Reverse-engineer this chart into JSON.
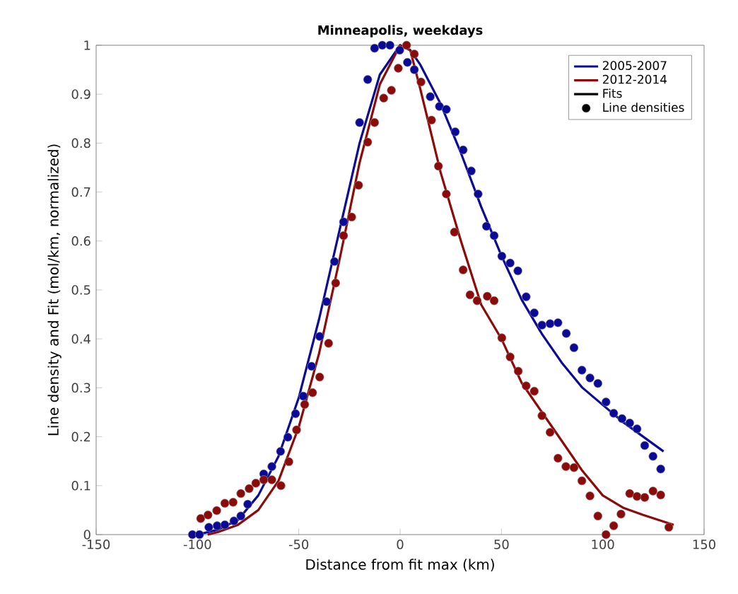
{
  "chart_data": {
    "type": "line",
    "title": "Minneapolis, weekdays",
    "xlabel": "Distance from fit max (km)",
    "ylabel": "Line density and Fit (mol/km, normalized)",
    "xlim": [
      -150,
      150
    ],
    "ylim": [
      0,
      1
    ],
    "xticks": [
      -150,
      -100,
      -50,
      0,
      50,
      100,
      150
    ],
    "yticks": [
      0,
      0.1,
      0.2,
      0.3,
      0.4,
      0.5,
      0.6,
      0.7,
      0.8,
      0.9,
      1
    ],
    "grid": false,
    "legend": "top right",
    "series": [
      {
        "name": "2005-2007",
        "marker": "none",
        "color": "#0a0a96",
        "x": [
          -100,
          -90,
          -80,
          -70,
          -60,
          -50,
          -40,
          -30,
          -20,
          -10,
          0,
          5,
          10,
          20,
          30,
          40,
          50,
          60,
          70,
          80,
          90,
          100,
          110,
          120,
          130
        ],
        "values": [
          0,
          0.01,
          0.03,
          0.08,
          0.16,
          0.28,
          0.44,
          0.62,
          0.8,
          0.94,
          1.0,
          0.99,
          0.96,
          0.88,
          0.78,
          0.67,
          0.57,
          0.48,
          0.41,
          0.35,
          0.3,
          0.265,
          0.23,
          0.2,
          0.17
        ]
      },
      {
        "name": "2012-2014",
        "marker": "none",
        "color": "#8b0a0a",
        "x": [
          -95,
          -90,
          -80,
          -70,
          -60,
          -50,
          -40,
          -30,
          -20,
          -10,
          0,
          5,
          10,
          20,
          30,
          40,
          50,
          60,
          70,
          80,
          90,
          100,
          110,
          120,
          135
        ],
        "values": [
          0,
          0.005,
          0.02,
          0.05,
          0.11,
          0.22,
          0.37,
          0.56,
          0.76,
          0.92,
          1.0,
          0.99,
          0.91,
          0.74,
          0.6,
          0.47,
          0.4,
          0.31,
          0.25,
          0.19,
          0.13,
          0.08,
          0.055,
          0.04,
          0.02
        ]
      },
      {
        "name": "Fits",
        "marker": "none",
        "color": "#000000"
      },
      {
        "name": "Line densities",
        "type": "scatter",
        "marker": "circle",
        "color": "#000000"
      },
      {
        "type": "scatter",
        "marker": "circle",
        "color": "#0a0a96",
        "x": [
          -102.5,
          -99,
          -94.4,
          -90.3,
          -86.5,
          -82,
          -78.6,
          -75.2,
          -67.3,
          -63.3,
          -59,
          -55.4,
          -51.6,
          -47.8,
          -43.7,
          -39.7,
          -36.3,
          -32.4,
          -27.9,
          -20,
          -16,
          -12.6,
          -8.8,
          -5,
          -0.2,
          3.6,
          7,
          14.9,
          19.4,
          22.8,
          27.2,
          31.1,
          35.1,
          38.5,
          42.6,
          46.4,
          50.2,
          54.3,
          58.1,
          62.2,
          66.2,
          70,
          74,
          77.9,
          82,
          85.8,
          89.7,
          93.7,
          97.6,
          101.6,
          105.4,
          109.5,
          113.3,
          116.9,
          120.7,
          124.8,
          128.6
        ],
        "values": [
          0,
          0,
          0.015,
          0.018,
          0.02,
          0.028,
          0.038,
          0.062,
          0.124,
          0.139,
          0.17,
          0.199,
          0.247,
          0.283,
          0.344,
          0.405,
          0.476,
          0.558,
          0.639,
          0.842,
          0.93,
          0.994,
          1.0,
          1.0,
          0.99,
          0.965,
          0.95,
          0.895,
          0.875,
          0.869,
          0.823,
          0.786,
          0.743,
          0.696,
          0.63,
          0.611,
          0.569,
          0.555,
          0.539,
          0.486,
          0.453,
          0.428,
          0.431,
          0.433,
          0.411,
          0.382,
          0.336,
          0.32,
          0.309,
          0.271,
          0.248,
          0.237,
          0.228,
          0.216,
          0.182,
          0.16,
          0.134
        ]
      },
      {
        "type": "scatter",
        "marker": "circle",
        "color": "#8b0a0a",
        "x": [
          -98.4,
          -94.8,
          -90.5,
          -86.5,
          -82.4,
          -78.6,
          -74.5,
          -71.2,
          -67.3,
          -63.3,
          -58.8,
          -54.9,
          -51.1,
          -47.1,
          -43.2,
          -39.7,
          -35.3,
          -31.8,
          -27.9,
          -23.9,
          -20.5,
          -16,
          -12.6,
          -8.1,
          -4.3,
          -0.9,
          3.2,
          7,
          10.3,
          15.5,
          18.9,
          22.8,
          26.8,
          31.1,
          34.5,
          38,
          43,
          46.4,
          50.2,
          54.3,
          58.3,
          62.2,
          66.2,
          70,
          74,
          77.9,
          81.8,
          85.8,
          89.7,
          93.7,
          97.6,
          101.6,
          105.4,
          109,
          113.3,
          116.9,
          120.7,
          124.8,
          128.6,
          132.6
        ],
        "values": [
          0.033,
          0.04,
          0.049,
          0.064,
          0.066,
          0.084,
          0.094,
          0.105,
          0.112,
          0.112,
          0.1,
          0.149,
          0.214,
          0.266,
          0.29,
          0.322,
          0.391,
          0.514,
          0.611,
          0.649,
          0.714,
          0.802,
          0.842,
          0.892,
          0.908,
          0.953,
          1.0,
          0.982,
          0.925,
          0.847,
          0.753,
          0.696,
          0.618,
          0.541,
          0.49,
          0.478,
          0.487,
          0.478,
          0.402,
          0.363,
          0.334,
          0.304,
          0.293,
          0.243,
          0.209,
          0.156,
          0.139,
          0.137,
          0.11,
          0.079,
          0.038,
          0,
          0.018,
          0.042,
          0.084,
          0.078,
          0.076,
          0.089,
          0.081,
          0.015
        ]
      }
    ]
  }
}
